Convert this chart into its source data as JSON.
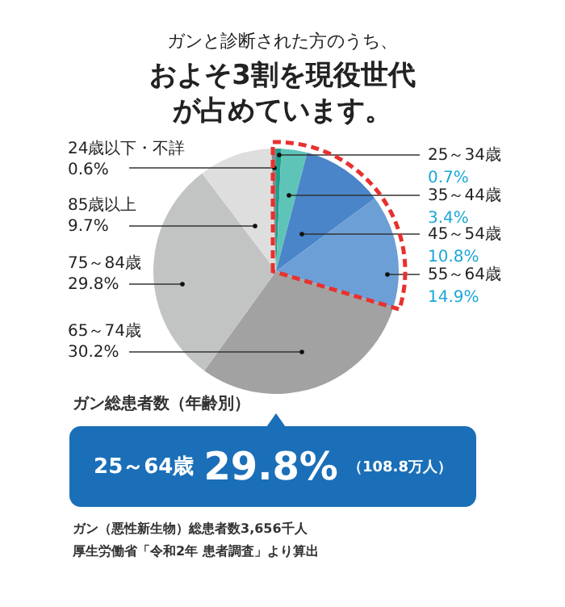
{
  "chart_data": {
    "type": "pie",
    "title": "ガンと診断された方のうち、",
    "subtitle": "およそ3割を現役世代が占めています。",
    "categories": [
      "25～34歳",
      "35～44歳",
      "45～54歳",
      "55～64歳",
      "65～74歳",
      "75～84歳",
      "85歳以上",
      "24歳以下・不詳"
    ],
    "values": [
      0.7,
      3.4,
      10.8,
      14.9,
      30.2,
      29.8,
      9.7,
      0.6
    ],
    "value_labels": [
      "0.7%",
      "3.4%",
      "10.8%",
      "14.9%",
      "30.2%",
      "29.8%",
      "9.7%",
      "0.6%"
    ],
    "colors": [
      "#1f9e8e",
      "#5ec4b8",
      "#4a85c9",
      "#6c9fd6",
      "#a2a2a2",
      "#c2c3c3",
      "#dedede",
      "#8a8a8a"
    ],
    "annotations": [
      "ガン総患者数（年齢別）",
      "25～64歳",
      "29.8%",
      "（108.8万人）",
      "ガン（悪性新生物）総患者数3,656千人",
      "厚生労働省「令和2年 患者調査」より算出"
    ]
  }
}
